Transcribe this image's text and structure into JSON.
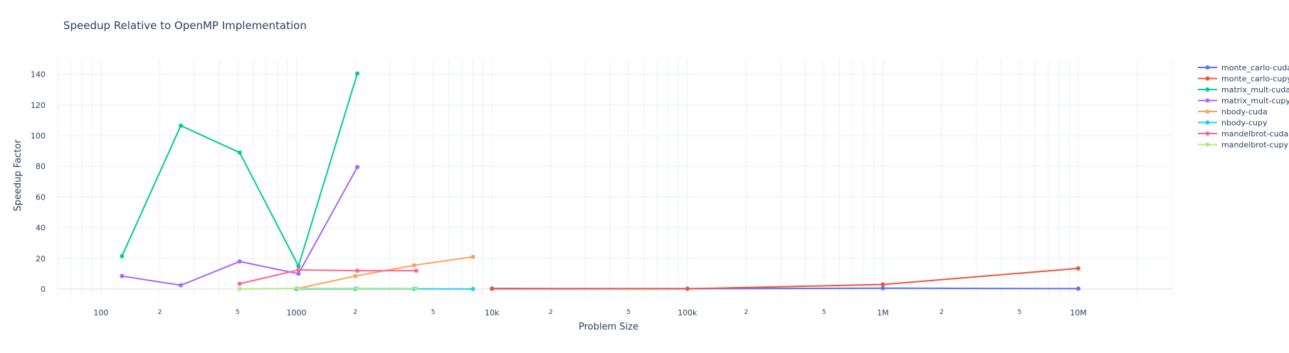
{
  "chart_data": {
    "type": "line",
    "title": "Speedup Relative to OpenMP Implementation",
    "xlabel": "Problem Size",
    "ylabel": "Speedup Factor",
    "x_scale": "log",
    "xlim": [
      60,
      30000000
    ],
    "ylim": [
      -6,
      150
    ],
    "grid": true,
    "legend_position": "right",
    "x_major_ticks": [
      {
        "value": 100,
        "label": "100"
      },
      {
        "value": 1000,
        "label": "1000"
      },
      {
        "value": 10000,
        "label": "10k"
      },
      {
        "value": 100000,
        "label": "100k"
      },
      {
        "value": 1000000,
        "label": "1M"
      },
      {
        "value": 10000000,
        "label": "10M"
      }
    ],
    "x_minor_ticks": [
      {
        "value": 200,
        "label": "2"
      },
      {
        "value": 500,
        "label": "5"
      },
      {
        "value": 2000,
        "label": "2"
      },
      {
        "value": 5000,
        "label": "5"
      },
      {
        "value": 20000,
        "label": "2"
      },
      {
        "value": 50000,
        "label": "5"
      },
      {
        "value": 200000,
        "label": "2"
      },
      {
        "value": 500000,
        "label": "5"
      },
      {
        "value": 2000000,
        "label": "2"
      },
      {
        "value": 5000000,
        "label": "5"
      }
    ],
    "y_ticks": [
      0,
      20,
      40,
      60,
      80,
      100,
      120,
      140
    ],
    "series": [
      {
        "name": "monte_carlo-cuda",
        "color": "#636efa",
        "x": [
          10000,
          100000,
          1000000,
          10000000
        ],
        "y": [
          0.4,
          0.3,
          0.6,
          0.3
        ]
      },
      {
        "name": "monte_carlo-cupy",
        "color": "#ef553b",
        "x": [
          10000,
          100000,
          1000000,
          10000000
        ],
        "y": [
          0.2,
          0.2,
          3.0,
          13.5
        ]
      },
      {
        "name": "matrix_mult-cuda",
        "color": "#00cc96",
        "x": [
          128,
          256,
          512,
          1024,
          2048
        ],
        "y": [
          21.5,
          106.5,
          89,
          15,
          140.5
        ]
      },
      {
        "name": "matrix_mult-cupy",
        "color": "#ab63fa",
        "x": [
          128,
          256,
          512,
          1024,
          2048
        ],
        "y": [
          8.5,
          2.5,
          18,
          10,
          79.5
        ]
      },
      {
        "name": "nbody-cuda",
        "color": "#ffa15a",
        "x": [
          1000,
          2000,
          4000,
          8000
        ],
        "y": [
          0.2,
          8.5,
          15.5,
          21
        ]
      },
      {
        "name": "nbody-cupy",
        "color": "#19d3f3",
        "x": [
          1000,
          2000,
          4000,
          8000
        ],
        "y": [
          0.1,
          0.2,
          0.2,
          0.1
        ]
      },
      {
        "name": "mandelbrot-cuda",
        "color": "#ff6692",
        "x": [
          512,
          1024,
          2048,
          4096
        ],
        "y": [
          3.5,
          12.5,
          12,
          12
        ]
      },
      {
        "name": "mandelbrot-cupy",
        "color": "#b6e880",
        "x": [
          512,
          1024,
          2048,
          4096
        ],
        "y": [
          0.1,
          0.5,
          0.5,
          0.5
        ]
      }
    ]
  }
}
